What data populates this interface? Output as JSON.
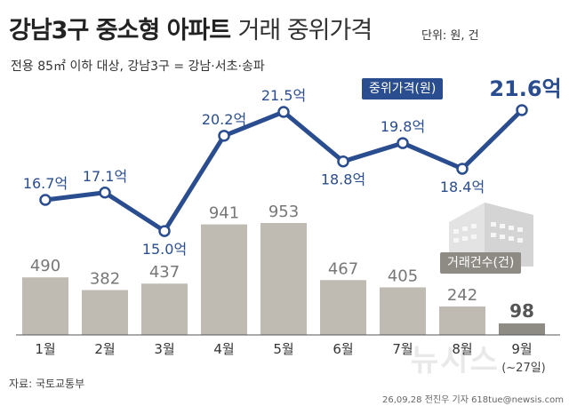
{
  "header": {
    "title_bold": "강남3구 중소형 아파트",
    "title_light": "거래 중위가격",
    "unit": "단위: 원, 건",
    "subtitle": "전용 85㎡ 이하 대상, 강남3구 = 강남·서초·송파"
  },
  "legend": {
    "price": "중위가격(원)",
    "count": "거래건수(건)"
  },
  "footer": {
    "source": "자료: 국토교통부",
    "credit": "26,09,28 전진우 기자 618tue@newsis.com",
    "watermark": "뉴시스",
    "last_note": "(~27일)"
  },
  "colors": {
    "line": "#2a4d8f",
    "bar": "#bfbbb2",
    "bar_last": "#8e8b85",
    "label_blue": "#2a4d8f"
  },
  "chart_data": {
    "type": "bar",
    "categories": [
      "1월",
      "2월",
      "3월",
      "4월",
      "5월",
      "6월",
      "7월",
      "8월",
      "9월"
    ],
    "series": [
      {
        "name": "거래건수(건)",
        "type": "bar",
        "values": [
          490,
          382,
          437,
          941,
          953,
          467,
          405,
          242,
          98
        ]
      },
      {
        "name": "중위가격(원)",
        "type": "line",
        "values": [
          16.7,
          17.1,
          15.0,
          20.2,
          21.5,
          18.8,
          19.8,
          18.4,
          21.6
        ],
        "labels": [
          "16.7억",
          "17.1억",
          "15.0억",
          "20.2억",
          "21.5억",
          "18.8억",
          "19.8억",
          "18.4억",
          "21.6억"
        ]
      }
    ],
    "title": "강남3구 중소형 아파트 거래 중위가격",
    "xlabel": "",
    "ylabel": ""
  }
}
